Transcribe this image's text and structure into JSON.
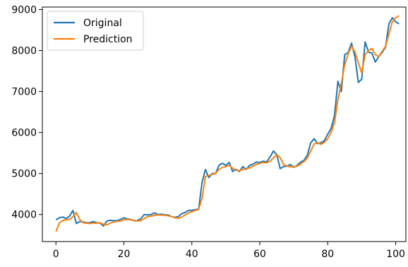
{
  "chart_data": {
    "type": "line",
    "xlim": [
      -4,
      103
    ],
    "ylim": [
      3340,
      9060
    ],
    "x_ticks": [
      0,
      20,
      40,
      60,
      80,
      100
    ],
    "y_ticks": [
      4000,
      5000,
      6000,
      7000,
      8000,
      9000
    ],
    "grid": false,
    "legend_position": "upper-left",
    "series": [
      {
        "name": "Original",
        "color": "#1f77b4",
        "x": [
          0,
          1,
          2,
          3,
          4,
          5,
          6,
          7,
          8,
          9,
          10,
          11,
          12,
          13,
          14,
          15,
          16,
          17,
          18,
          19,
          20,
          21,
          22,
          23,
          24,
          25,
          26,
          27,
          28,
          29,
          30,
          31,
          32,
          33,
          34,
          35,
          36,
          37,
          38,
          39,
          40,
          41,
          42,
          43,
          44,
          45,
          46,
          47,
          48,
          49,
          50,
          51,
          52,
          53,
          54,
          55,
          56,
          57,
          58,
          59,
          60,
          61,
          62,
          63,
          64,
          65,
          66,
          67,
          68,
          69,
          70,
          71,
          72,
          73,
          74,
          75,
          76,
          77,
          78,
          79,
          80,
          81,
          82,
          83,
          84,
          85,
          86,
          87,
          88,
          89,
          90,
          91,
          92,
          93,
          94,
          95,
          96,
          97,
          98,
          99,
          100,
          101
        ],
        "values": [
          3870,
          3920,
          3940,
          3900,
          3960,
          4100,
          3780,
          3830,
          3820,
          3800,
          3800,
          3830,
          3800,
          3790,
          3720,
          3840,
          3860,
          3850,
          3850,
          3880,
          3920,
          3890,
          3880,
          3850,
          3850,
          3900,
          4000,
          3990,
          4000,
          4040,
          4000,
          4010,
          3990,
          3990,
          3950,
          3930,
          3950,
          4020,
          4050,
          4100,
          4100,
          4120,
          4130,
          4780,
          5100,
          4900,
          5000,
          5000,
          5200,
          5250,
          5200,
          5270,
          5050,
          5100,
          5050,
          5170,
          5100,
          5200,
          5230,
          5280,
          5270,
          5300,
          5280,
          5400,
          5550,
          5460,
          5120,
          5170,
          5180,
          5220,
          5150,
          5200,
          5280,
          5320,
          5450,
          5750,
          5850,
          5730,
          5750,
          5800,
          5960,
          6100,
          6420,
          7250,
          7000,
          7900,
          7950,
          8180,
          7850,
          7220,
          7300,
          8210,
          7960,
          7940,
          7720,
          7850,
          7950,
          8080,
          8650,
          8800,
          8700,
          8650
        ]
      },
      {
        "name": "Prediction",
        "color": "#ff7f0e",
        "x": [
          0,
          1,
          2,
          3,
          4,
          5,
          6,
          7,
          8,
          9,
          10,
          11,
          12,
          13,
          14,
          15,
          16,
          17,
          18,
          19,
          20,
          21,
          22,
          23,
          24,
          25,
          26,
          27,
          28,
          29,
          30,
          31,
          32,
          33,
          34,
          35,
          36,
          37,
          38,
          39,
          40,
          41,
          42,
          43,
          44,
          45,
          46,
          47,
          48,
          49,
          50,
          51,
          52,
          53,
          54,
          55,
          56,
          57,
          58,
          59,
          60,
          61,
          62,
          63,
          64,
          65,
          66,
          67,
          68,
          69,
          70,
          71,
          72,
          73,
          74,
          75,
          76,
          77,
          78,
          79,
          80,
          81,
          82,
          83,
          84,
          85,
          86,
          87,
          88,
          89,
          90,
          91,
          92,
          93,
          94,
          95,
          96,
          97,
          98,
          99,
          100,
          101
        ],
        "values": [
          3590,
          3790,
          3860,
          3870,
          3880,
          3950,
          4050,
          3880,
          3800,
          3790,
          3780,
          3790,
          3790,
          3800,
          3760,
          3750,
          3790,
          3820,
          3830,
          3840,
          3870,
          3880,
          3870,
          3860,
          3840,
          3850,
          3900,
          3950,
          3960,
          3980,
          3990,
          3990,
          3980,
          3970,
          3950,
          3920,
          3910,
          3940,
          3990,
          4040,
          4070,
          4100,
          4120,
          4400,
          4930,
          4950,
          4980,
          5000,
          5100,
          5150,
          5170,
          5200,
          5130,
          5080,
          5070,
          5100,
          5110,
          5140,
          5180,
          5220,
          5250,
          5270,
          5260,
          5300,
          5380,
          5460,
          5390,
          5220,
          5180,
          5160,
          5170,
          5180,
          5230,
          5290,
          5380,
          5550,
          5720,
          5750,
          5710,
          5760,
          5850,
          6000,
          6250,
          6800,
          7200,
          7650,
          7920,
          8100,
          7970,
          7700,
          7450,
          7900,
          8000,
          8050,
          7900,
          7850,
          7980,
          8100,
          8400,
          8700,
          8800,
          8850
        ]
      }
    ]
  }
}
